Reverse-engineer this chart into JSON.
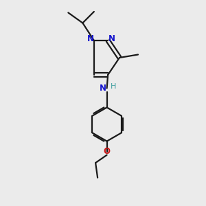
{
  "bg_color": "#ebebeb",
  "bond_color": "#1a1a1a",
  "N_color": "#1414cc",
  "O_color": "#cc1414",
  "H_color": "#3d9e9e",
  "line_width": 1.6,
  "figsize": [
    3.0,
    3.0
  ],
  "dpi": 100,
  "xlim": [
    0,
    10
  ],
  "ylim": [
    0,
    10
  ]
}
